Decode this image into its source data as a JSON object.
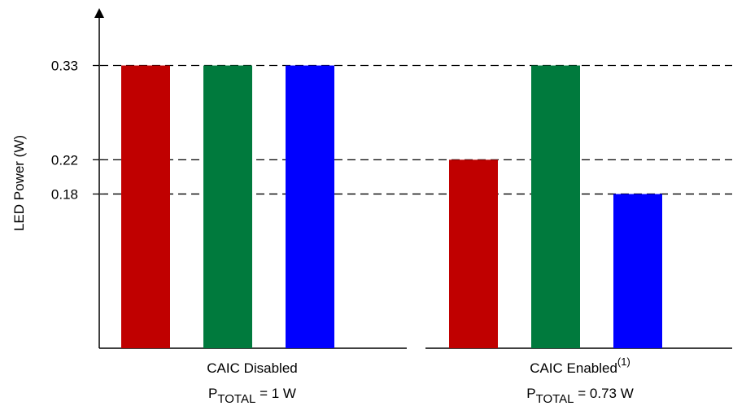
{
  "chart_data": {
    "type": "bar",
    "ylabel": "LED Power (W)",
    "yticks": [
      "0.33",
      "0.22",
      "0.18"
    ],
    "ytick_values": [
      0.33,
      0.22,
      0.18
    ],
    "ylim": [
      0,
      0.4
    ],
    "grid": "dashed lines at tick values",
    "groups": [
      {
        "label": "CAIC Disabled",
        "sub_prefix": "P",
        "sub_subscript": "TOTAL",
        "sub_suffix": " = 1 W",
        "bars": [
          {
            "value": 0.33,
            "color": "#c00000"
          },
          {
            "value": 0.33,
            "color": "#007a3d"
          },
          {
            "value": 0.33,
            "color": "#0000ff"
          }
        ]
      },
      {
        "label": "CAIC Enabled",
        "label_superscript": "(1)",
        "sub_prefix": "P",
        "sub_subscript": "TOTAL",
        "sub_suffix": " = 0.73 W",
        "bars": [
          {
            "value": 0.22,
            "color": "#c00000"
          },
          {
            "value": 0.33,
            "color": "#007a3d"
          },
          {
            "value": 0.18,
            "color": "#0000ff"
          }
        ]
      }
    ]
  }
}
